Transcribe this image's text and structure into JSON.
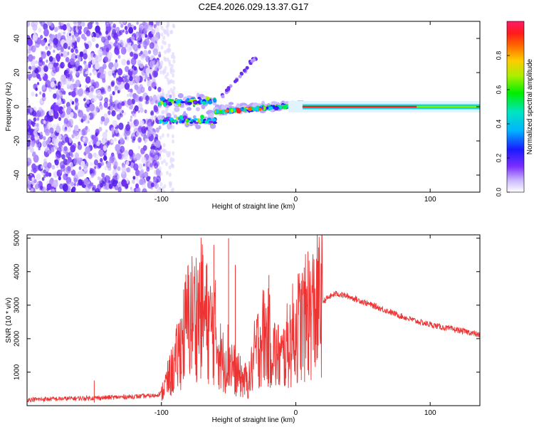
{
  "title": "C2E4.2026.029.13.37.G17",
  "chart_data": [
    {
      "type": "heatmap",
      "xlabel": "Height of straight line (km)",
      "ylabel": "Frequency (Hz)",
      "xlim": [
        -200,
        137
      ],
      "ylim": [
        -50,
        50
      ],
      "xticks": [
        -100,
        0,
        100
      ],
      "yticks": [
        -40,
        -20,
        0,
        20,
        40
      ],
      "description_series": [
        {
          "name": "noise",
          "x_range": [
            -200,
            -101
          ],
          "freq_range": [
            -50,
            50
          ],
          "amplitude": [
            0.05,
            0.2
          ]
        },
        {
          "name": "transition",
          "x_range": [
            -101,
            5
          ],
          "center_freq": [
            0,
            0
          ],
          "amplitude": [
            0.3,
            0.9
          ]
        },
        {
          "name": "carrier",
          "x_range": [
            5,
            137
          ],
          "center_freq": 0,
          "amplitude": 0.95
        }
      ],
      "colorbar": {
        "label": "Normalized spectral amplitude",
        "range": [
          0,
          1
        ],
        "ticks": [
          "0.0",
          "0.2",
          "0.4",
          "0.6",
          "0.8"
        ]
      }
    },
    {
      "type": "line",
      "xlabel": "Height of straight line (km)",
      "ylabel": "SNR (10 * v/v)",
      "xlim": [
        -200,
        137
      ],
      "ylim": [
        0,
        5100
      ],
      "xticks": [
        -100,
        0,
        100
      ],
      "yticks": [
        1000,
        2000,
        3000,
        4000,
        5000
      ],
      "series": [
        {
          "name": "SNR",
          "color": "#ee3333",
          "x": [
            -200,
            -150,
            -120,
            -105,
            -100,
            -90,
            -80,
            -70,
            -65,
            -60,
            -55,
            -50,
            -45,
            -40,
            -35,
            -30,
            -25,
            -20,
            -15,
            -10,
            -5,
            0,
            5,
            10,
            15,
            20,
            25,
            30,
            40,
            50,
            60,
            70,
            80,
            90,
            100,
            110,
            120,
            130,
            137
          ],
          "values": [
            180,
            230,
            270,
            300,
            380,
            1200,
            2600,
            2900,
            2400,
            2200,
            1300,
            1500,
            1000,
            800,
            700,
            1600,
            2100,
            2000,
            1500,
            1400,
            1900,
            2300,
            2500,
            2700,
            2900,
            3100,
            3250,
            3350,
            3250,
            3100,
            2950,
            2800,
            2650,
            2520,
            2420,
            2330,
            2260,
            2180,
            2100
          ],
          "spikes": [
            {
              "x": -150,
              "value": 750
            },
            {
              "x": -70,
              "value": 4300
            },
            {
              "x": -61,
              "value": 4800
            },
            {
              "x": -50,
              "value": 5000
            },
            {
              "x": -45,
              "value": 4200
            },
            {
              "x": -20,
              "value": 3900
            },
            {
              "x": 9,
              "value": 4600
            }
          ]
        }
      ]
    }
  ]
}
